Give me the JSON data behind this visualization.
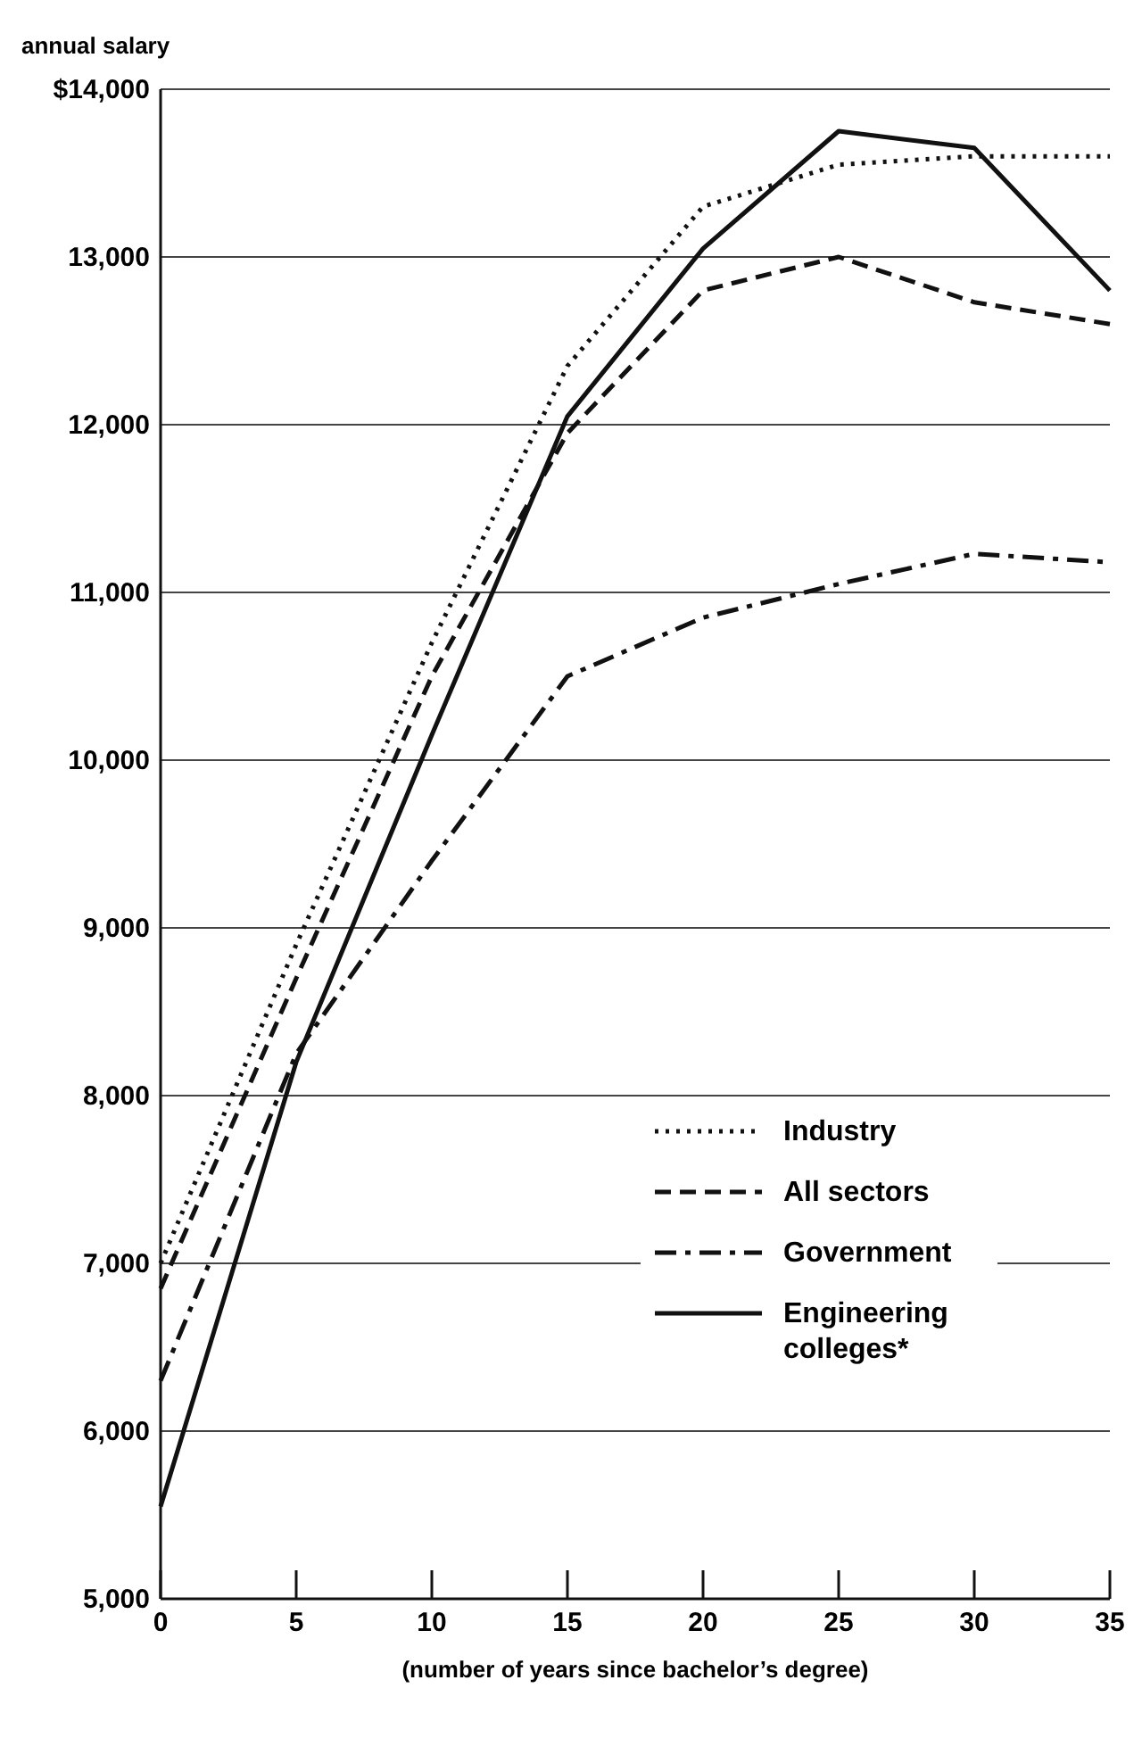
{
  "chart_data": {
    "type": "line",
    "ylabel": "annual salary",
    "xlabel": "(number of years since bachelor’s degree)",
    "x": [
      0,
      5,
      10,
      15,
      20,
      25,
      30,
      35
    ],
    "xlim": [
      0,
      35
    ],
    "xticks": [
      0,
      5,
      10,
      15,
      20,
      25,
      30,
      35
    ],
    "ylim": [
      5000,
      14000
    ],
    "yticks": [
      {
        "value": 5000,
        "label": "5,000"
      },
      {
        "value": 6000,
        "label": "6,000"
      },
      {
        "value": 7000,
        "label": "7,000"
      },
      {
        "value": 8000,
        "label": "8,000"
      },
      {
        "value": 9000,
        "label": "9,000"
      },
      {
        "value": 10000,
        "label": "10,000"
      },
      {
        "value": 11000,
        "label": "11,000"
      },
      {
        "value": 12000,
        "label": "12,000"
      },
      {
        "value": 13000,
        "label": "13,000"
      },
      {
        "value": 14000,
        "label": "$14,000"
      }
    ],
    "grid": "y",
    "legend": "bottom right",
    "marker": "none",
    "series": [
      {
        "name": "Industry",
        "color": "#111111",
        "line_style": "dotted",
        "values": [
          7000,
          8900,
          10700,
          12350,
          13300,
          13550,
          13600,
          13600
        ]
      },
      {
        "name": "All sectors",
        "color": "#111111",
        "line_style": "dashed",
        "values": [
          6850,
          8700,
          10500,
          11950,
          12800,
          13000,
          12730,
          12600
        ]
      },
      {
        "name": "Government",
        "color": "#111111",
        "line_style": "dashdot",
        "values": [
          6300,
          8250,
          9400,
          10500,
          10850,
          11050,
          11230,
          11180
        ]
      },
      {
        "name": "Engineering colleges*",
        "color": "#111111",
        "line_style": "solid",
        "values": [
          5550,
          8200,
          10150,
          12050,
          13050,
          13750,
          13650,
          12800
        ]
      }
    ]
  }
}
